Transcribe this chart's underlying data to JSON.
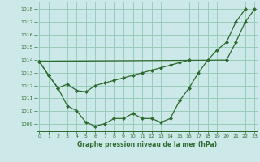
{
  "background_color": "#cce8e8",
  "grid_color": "#99ccbb",
  "line_color": "#2d6a2d",
  "marker_color": "#2d6a2d",
  "title": "Graphe pression niveau de la mer (hPa)",
  "xlim": [
    -0.3,
    23.3
  ],
  "ylim": [
    1008.4,
    1018.6
  ],
  "yticks": [
    1009,
    1010,
    1011,
    1012,
    1013,
    1014,
    1015,
    1016,
    1017,
    1018
  ],
  "xticks": [
    0,
    1,
    2,
    3,
    4,
    5,
    6,
    7,
    8,
    9,
    10,
    11,
    12,
    13,
    14,
    15,
    16,
    17,
    18,
    19,
    20,
    21,
    22,
    23
  ],
  "series": [
    {
      "x": [
        0,
        1,
        2,
        3,
        4,
        5,
        6,
        7,
        8,
        9,
        10,
        11,
        12,
        13,
        14,
        15,
        16,
        17,
        18,
        19,
        20,
        21,
        22,
        23
      ],
      "y": [
        1013.9,
        1012.8,
        1011.8,
        1010.4,
        1010.0,
        1009.1,
        1008.8,
        1009.0,
        1009.4,
        1009.4,
        1009.8,
        1009.4,
        1009.4,
        1009.1,
        1009.4,
        1010.8,
        1011.8,
        1013.0,
        1014.0,
        1014.8,
        1015.4,
        1017.0,
        1018.0,
        null
      ]
    },
    {
      "x": [
        0,
        1,
        2,
        3,
        4,
        5,
        6,
        7,
        8,
        9,
        10,
        11,
        12,
        13,
        14,
        15,
        16,
        17,
        18,
        19,
        20,
        21,
        22,
        23
      ],
      "y": [
        1013.9,
        1012.8,
        1011.8,
        1012.1,
        1011.6,
        1011.5,
        1012.0,
        1012.2,
        1012.4,
        1012.6,
        1012.8,
        1013.0,
        1013.2,
        1013.4,
        1013.6,
        1013.8,
        1014.0,
        null,
        null,
        null,
        null,
        null,
        null,
        null
      ]
    },
    {
      "comment": "Upper straight line: from x=0 ~1014 to x=20 ~1014, x=21 ~1015.4, x=22 ~1017, x=23 ~1018",
      "x": [
        0,
        20,
        21,
        22,
        23
      ],
      "y": [
        1013.9,
        1014.0,
        1015.4,
        1017.0,
        1018.0
      ]
    }
  ]
}
